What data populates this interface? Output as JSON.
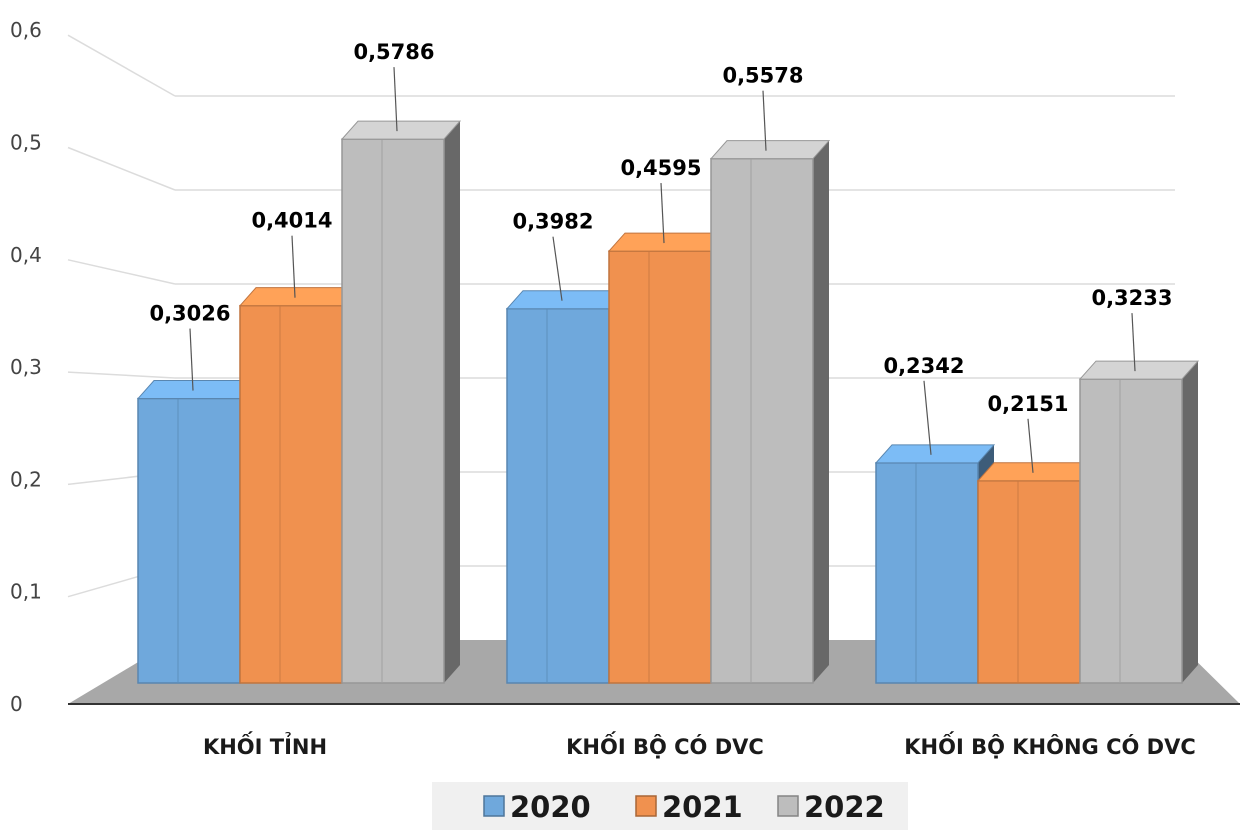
{
  "chart_data": {
    "type": "bar",
    "style": "3d-clustered-column",
    "categories": [
      "KHỐI TỈNH",
      "KHỐI BỘ CÓ DVC",
      "KHỐI BỘ KHÔNG CÓ DVC"
    ],
    "series": [
      {
        "name": "2020",
        "values": [
          0.3026,
          0.3982,
          0.2342
        ],
        "labels": [
          "0,3026",
          "0,3982",
          "0,2342"
        ],
        "color": "#6fa8dc"
      },
      {
        "name": "2021",
        "values": [
          0.4014,
          0.4595,
          0.2151
        ],
        "labels": [
          "0,4014",
          "0,4595",
          "0,2151"
        ],
        "color": "#f0914f"
      },
      {
        "name": "2022",
        "values": [
          0.5786,
          0.5578,
          0.3233
        ],
        "labels": [
          "0,5786",
          "0,5578",
          "0,3233"
        ],
        "color": "#bdbdbd"
      }
    ],
    "y_ticks": [
      {
        "value": 0,
        "label": "0"
      },
      {
        "value": 0.1,
        "label": "0,1"
      },
      {
        "value": 0.2,
        "label": "0,2"
      },
      {
        "value": 0.3,
        "label": "0,3"
      },
      {
        "value": 0.4,
        "label": "0,4"
      },
      {
        "value": 0.5,
        "label": "0,5"
      },
      {
        "value": 0.6,
        "label": "0,6"
      }
    ],
    "ylim": [
      0,
      0.6
    ],
    "grid": true,
    "legend_position": "bottom",
    "title": "",
    "xlabel": "",
    "ylabel": ""
  }
}
